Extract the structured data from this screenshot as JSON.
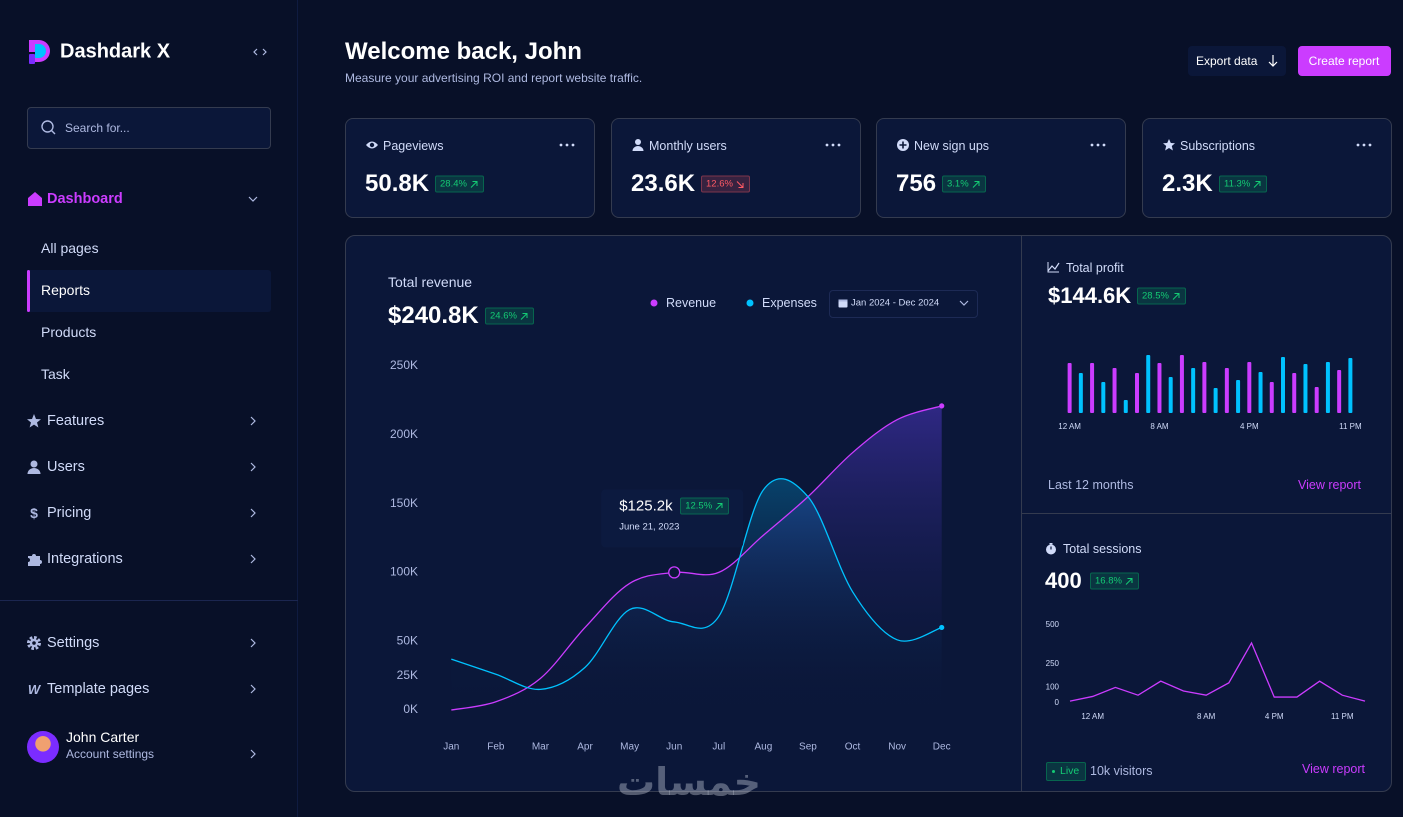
{
  "sidebar": {
    "brand": "Dashdark X",
    "search": "Search for...",
    "dashboard": "Dashboard",
    "pages": [
      "All pages",
      "Reports",
      "Products",
      "Task"
    ],
    "menu": [
      "Features",
      "Users",
      "Pricing",
      "Integrations"
    ],
    "footer_menu": [
      "Settings",
      "Template pages"
    ],
    "user": {
      "name": "John Carter",
      "link": "Account settings"
    }
  },
  "header": {
    "title": "Welcome back, John",
    "subtitle": "Measure your advertising ROI and report website traffic.",
    "export": "Export data",
    "create": "Create report"
  },
  "stats": [
    {
      "label": "Pageviews",
      "value": "50.8K",
      "change": "28.4%",
      "trend": "up"
    },
    {
      "label": "Monthly users",
      "value": "23.6K",
      "change": "12.6%",
      "trend": "down"
    },
    {
      "label": "New sign ups",
      "value": "756",
      "change": "3.1%",
      "trend": "up"
    },
    {
      "label": "Subscriptions",
      "value": "2.3K",
      "change": "11.3%",
      "trend": "up"
    }
  ],
  "watermark": "خمسات",
  "chart_data": [
    {
      "type": "area",
      "title": "Total revenue",
      "total": "$240.8K",
      "change": "24.6%",
      "date_range": "Jan 2024 - Dec 2024",
      "categories": [
        "Jan",
        "Feb",
        "Mar",
        "Apr",
        "May",
        "Jun",
        "Jul",
        "Aug",
        "Sep",
        "Oct",
        "Nov",
        "Dec"
      ],
      "series": [
        {
          "name": "Revenue",
          "color": "#cb3cff",
          "values": [
            0,
            6000,
            23000,
            60000,
            92000,
            100000,
            100000,
            127000,
            155000,
            187000,
            211000,
            221000
          ]
        },
        {
          "name": "Expenses",
          "color": "#00c2ff",
          "values": [
            37000,
            26000,
            15000,
            31000,
            73000,
            64000,
            68000,
            160000,
            155000,
            86000,
            51000,
            60000
          ]
        }
      ],
      "ylim": [
        0,
        250000
      ],
      "yticks": [
        {
          "value": 0,
          "label": "0K"
        },
        {
          "value": 25000,
          "label": "25K"
        },
        {
          "value": 50000,
          "label": "50K"
        },
        {
          "value": 100000,
          "label": "100K"
        },
        {
          "value": 150000,
          "label": "150K"
        },
        {
          "value": 200000,
          "label": "200K"
        },
        {
          "value": 250000,
          "label": "250K"
        }
      ],
      "annotation": {
        "category": "Jun",
        "value": "$125.2k",
        "change": "12.5%",
        "date": "June 21, 2023"
      }
    },
    {
      "type": "bar",
      "title": "Total profit",
      "total": "$144.6K",
      "change": "28.5%",
      "footer": "Last 12 months",
      "link": "View report",
      "categories": [
        "12 AM",
        null,
        null,
        null,
        null,
        null,
        null,
        null,
        "8 AM",
        null,
        null,
        null,
        null,
        null,
        null,
        null,
        "4 PM",
        null,
        null,
        null,
        null,
        null,
        null,
        null,
        null,
        "11 PM"
      ],
      "values": [
        50,
        40,
        50,
        31,
        45,
        13,
        40,
        58,
        50,
        36,
        58,
        45,
        51,
        25,
        45,
        33,
        51,
        41,
        31,
        56,
        40,
        49,
        26,
        51,
        43,
        55
      ],
      "colors": [
        "#cb3cff",
        "#00c2ff"
      ]
    },
    {
      "type": "line",
      "title": "Total sessions",
      "total": "400",
      "change": "16.8%",
      "status": "Live",
      "visitors": "10k visitors",
      "link": "View report",
      "categories": [
        null,
        "12 AM",
        null,
        null,
        null,
        null,
        "8 AM",
        null,
        null,
        "4 PM",
        null,
        null,
        "11 PM",
        null
      ],
      "values": [
        12,
        42,
        100,
        50,
        140,
        77,
        50,
        129,
        385,
        38,
        38,
        140,
        50,
        12
      ],
      "color": "#cb3cff",
      "ylim": [
        0,
        500
      ],
      "yticks": [
        0,
        100,
        250,
        500
      ]
    }
  ]
}
